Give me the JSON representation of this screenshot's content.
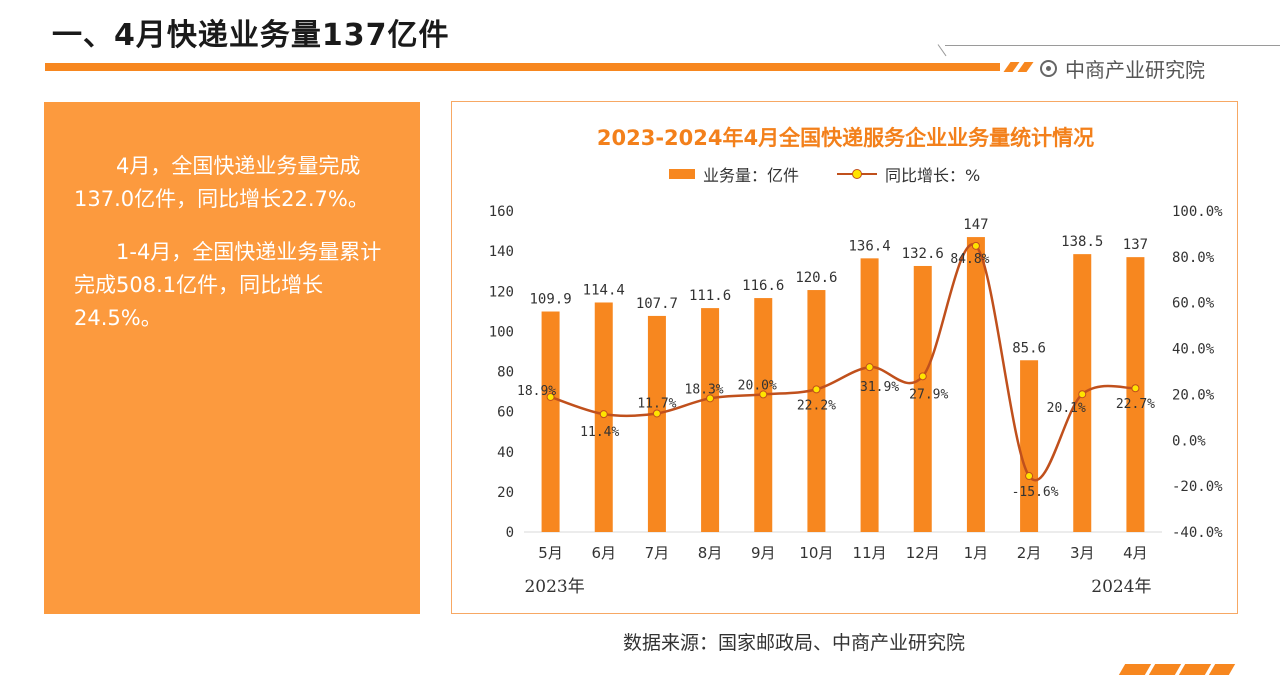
{
  "page": {
    "title": "一、4月快递业务量137亿件",
    "brand": "中商产业研究院",
    "source": "数据来源：国家邮政局、中商产业研究院"
  },
  "summary": {
    "paragraphs": [
      "4月，全国快递业务量完成137.0亿件，同比增长22.7%。",
      "1-4月，全国快递业务量累计完成508.1亿件，同比增长24.5%。"
    ]
  },
  "colors": {
    "accent": "#f7871f",
    "summary_bg": "#fc9a3e",
    "line": "#c0501c",
    "marker": "#ffe400",
    "title": "#f3801b"
  },
  "chart_data": {
    "type": "bar",
    "title": "2023-2024年4月全国快递服务企业业务量统计情况",
    "categories": [
      "5月",
      "6月",
      "7月",
      "8月",
      "9月",
      "10月",
      "11月",
      "12月",
      "1月",
      "2月",
      "3月",
      "4月"
    ],
    "year_labels": [
      "2023年",
      "2024年"
    ],
    "series": [
      {
        "name": "业务量：亿件",
        "type": "bar",
        "axis": "left",
        "values": [
          109.9,
          114.4,
          107.7,
          111.6,
          116.6,
          120.6,
          136.4,
          132.6,
          147,
          85.6,
          138.5,
          137
        ],
        "labels": [
          "109.9",
          "114.4",
          "107.7",
          "111.6",
          "116.6",
          "120.6",
          "136.4",
          "132.6",
          "147",
          "85.6",
          "138.5",
          "137"
        ]
      },
      {
        "name": "同比增长：%",
        "type": "line",
        "axis": "right",
        "values": [
          18.9,
          11.4,
          11.7,
          18.3,
          20.0,
          22.2,
          31.9,
          27.9,
          84.8,
          -15.6,
          20.1,
          22.7
        ],
        "labels": [
          "18.9%",
          "11.4%",
          "11.7%",
          "18.3%",
          "20.0%",
          "22.2%",
          "31.9%",
          "27.9%",
          "84.8%",
          "-15.6%",
          "20.1%",
          "22.7%"
        ]
      }
    ],
    "y_left": {
      "min": 0,
      "max": 160,
      "ticks": [
        "0",
        "20",
        "40",
        "60",
        "80",
        "100",
        "120",
        "140",
        "160"
      ]
    },
    "y_right": {
      "min": -40,
      "max": 100,
      "ticks": [
        "-40.0%",
        "-20.0%",
        "0.0%",
        "20.0%",
        "40.0%",
        "60.0%",
        "80.0%",
        "100.0%"
      ]
    },
    "grid": false,
    "legend": "top"
  }
}
